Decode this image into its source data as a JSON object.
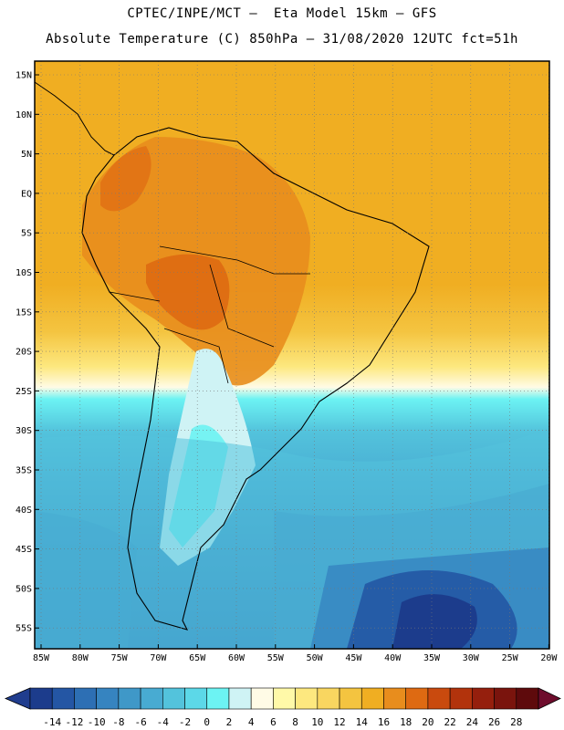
{
  "header": {
    "line1": "CPTEC/INPE/MCT –  Eta Model 15km – GFS",
    "line2": "Absolute Temperature (C) 850hPa – 31/08/2020 12UTC fct=51h"
  },
  "map": {
    "lat_ticks": [
      "15N",
      "10N",
      "5N",
      "EQ",
      "5S",
      "10S",
      "15S",
      "20S",
      "25S",
      "30S",
      "35S",
      "40S",
      "45S",
      "50S",
      "55S"
    ],
    "lon_ticks": [
      "85W",
      "80W",
      "75W",
      "70W",
      "65W",
      "60W",
      "55W",
      "50W",
      "45W",
      "40W",
      "35W",
      "30W",
      "25W",
      "20W"
    ]
  },
  "colorbar": {
    "labels": [
      "-14",
      "-12",
      "-10",
      "-8",
      "-6",
      "-4",
      "-2",
      "0",
      "2",
      "4",
      "6",
      "8",
      "10",
      "12",
      "14",
      "16",
      "18",
      "20",
      "22",
      "24",
      "26",
      "28"
    ],
    "colors": [
      "#1c3c8c",
      "#2456a4",
      "#2d6fb4",
      "#3684c0",
      "#3f98c8",
      "#48abd2",
      "#53c3dc",
      "#5cd8e8",
      "#6cf3f3",
      "#cff3f5",
      "#fffbe6",
      "#fff9a8",
      "#fde87f",
      "#f9d660",
      "#f4c440",
      "#f0ae22",
      "#e88d1d",
      "#de6a12",
      "#c94a0e",
      "#b2330c",
      "#951f0d",
      "#7a140d",
      "#5e0a0c"
    ],
    "under_color": "#203d8e",
    "over_color": "#6e0c2c"
  }
}
